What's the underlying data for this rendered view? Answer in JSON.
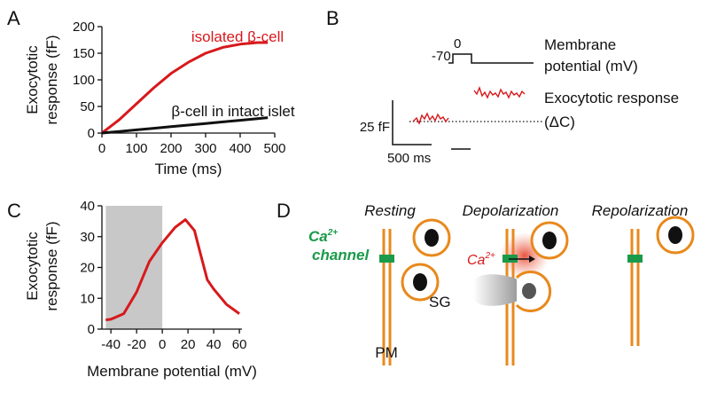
{
  "chart_data": [
    {
      "type": "line",
      "panel": "A",
      "ylabel": [
        "Exocytotic",
        "response (fF)"
      ],
      "xlabel": "Time (ms)",
      "xlim": [
        0,
        500
      ],
      "xticks": [
        0,
        100,
        200,
        300,
        400,
        500
      ],
      "ylim": [
        0,
        200
      ],
      "yticks": [
        0,
        50,
        100,
        150,
        200
      ],
      "x": [
        0,
        50,
        100,
        150,
        200,
        250,
        300,
        350,
        400,
        450,
        480
      ],
      "series": [
        {
          "name": "isolated β-cell",
          "color": "#d7191c",
          "values": [
            0,
            25,
            55,
            85,
            112,
            133,
            150,
            161,
            167,
            170,
            170
          ]
        },
        {
          "name": "β-cell in intact islet",
          "color": "#111111",
          "values": [
            0,
            3,
            6,
            9,
            12,
            15,
            18,
            21,
            24,
            27,
            29
          ]
        }
      ]
    },
    {
      "type": "line",
      "panel": "C",
      "ylabel": [
        "Exocytotic",
        "response (fF)"
      ],
      "xlabel": "Membrane potential (mV)",
      "xlim": [
        -47,
        62
      ],
      "xticks": [
        -40,
        -20,
        0,
        20,
        40,
        60
      ],
      "ylim": [
        0,
        40
      ],
      "yticks": [
        0,
        10,
        20,
        30,
        40
      ],
      "shaded_xrange": [
        -44,
        0
      ],
      "shade_color": "#c8c8c8",
      "x": [
        -44,
        -40,
        -30,
        -20,
        -10,
        0,
        10,
        18,
        25,
        30,
        35,
        40,
        50,
        60
      ],
      "series": [
        {
          "name": null,
          "color": "#d7191c",
          "values": [
            3,
            3.2,
            5,
            12,
            22,
            28,
            33,
            35.5,
            32,
            24,
            16,
            13,
            8,
            5
          ]
        }
      ]
    }
  ],
  "panel_b": {
    "label": "B",
    "holding_potential": "-70",
    "step_potential": "0",
    "voltage_label": [
      "Membrane",
      "potential (mV)"
    ],
    "response_label": [
      "Exocytotic response",
      "(ΔC)"
    ],
    "scale_y": "25 fF",
    "scale_x": "500 ms"
  },
  "panel_d": {
    "label": "D",
    "columns": [
      "Resting",
      "Depolarization",
      "Repolarization"
    ],
    "channel_label": [
      "Ca",
      "2+",
      "channel"
    ],
    "ion_label": [
      "Ca",
      "2+"
    ],
    "granule_label": "SG",
    "membrane_label": "PM"
  }
}
